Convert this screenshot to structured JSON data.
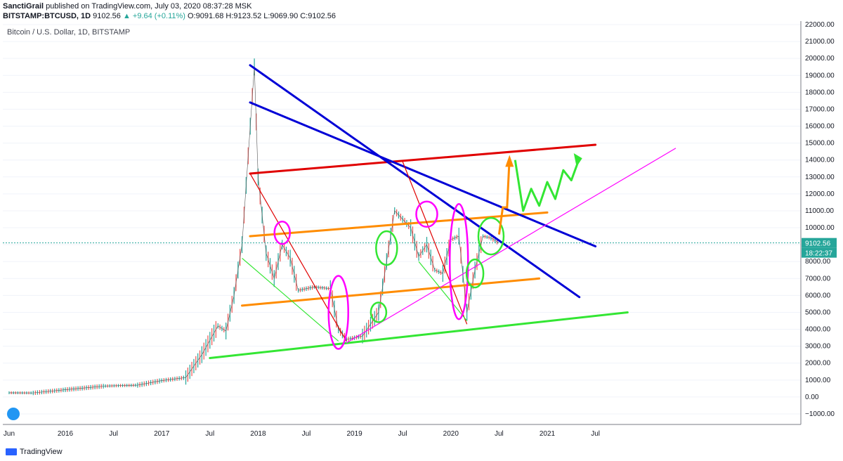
{
  "header": {
    "author": "SanctiGrail",
    "published_text": "published on TradingView.com, July 03, 2020 08:37:28 MSK",
    "symbol": "BITSTAMP:BTCUSD, 1D",
    "last": "9102.56",
    "change": "+9.64 (+0.11%)",
    "ohlc": "O:9091.68 H:9123.52 L:9069.90 C:9102.56",
    "arrow": "▲"
  },
  "symbol_title": "Bitcoin / U.S. Dollar, 1D, BITSTAMP",
  "price_badge": "9102.56",
  "time_badge": "18:22:37",
  "footer_brand": "TradingView",
  "colors": {
    "up": "#26a69a",
    "down": "#ef5350",
    "badge": "#26a69a",
    "blue_trend": "#0000d6",
    "red_trend": "#e00000",
    "orange_channel": "#ff8c00",
    "green_support": "#33e633",
    "magenta": "#ff00ff"
  },
  "chart_data": {
    "type": "line",
    "x_tick_labels": [
      "Jun",
      "2016",
      "Jul",
      "2017",
      "Jul",
      "2018",
      "Jul",
      "2019",
      "Jul",
      "2020",
      "Jul",
      "2021",
      "Jul"
    ],
    "y_tick_labels": [
      "22000.00",
      "21000.00",
      "20000.00",
      "19000.00",
      "18000.00",
      "17000.00",
      "16000.00",
      "15000.00",
      "14000.00",
      "13000.00",
      "12000.00",
      "11000.00",
      "10000.00",
      "9000.00",
      "8000.00",
      "7000.00",
      "6000.00",
      "5000.00",
      "4000.00",
      "3000.00",
      "2000.00",
      "1000.00",
      "0.00",
      "−1000.00"
    ],
    "ylim": [
      -1500,
      22000
    ],
    "x_range": [
      "2015-06",
      "2022-06"
    ],
    "last_price": 9102.56,
    "series": [
      {
        "x": [
          "2015-06",
          "2015-09",
          "2016-01",
          "2016-06",
          "2016-10",
          "2017-01",
          "2017-04",
          "2017-06",
          "2017-08",
          "2017-09",
          "2017-10",
          "2017-11",
          "2017-12-17",
          "2018-01",
          "2018-02",
          "2018-03",
          "2018-04",
          "2018-05",
          "2018-06",
          "2018-08",
          "2018-10",
          "2018-11",
          "2018-12",
          "2019-02",
          "2019-04",
          "2019-05",
          "2019-06",
          "2019-07",
          "2019-08",
          "2019-09",
          "2019-10",
          "2019-11",
          "2019-12",
          "2020-01",
          "2020-02",
          "2020-03",
          "2020-04",
          "2020-05",
          "2020-06",
          "2020-07"
        ],
        "values": [
          250,
          240,
          430,
          650,
          700,
          970,
          1150,
          2500,
          4200,
          3900,
          6000,
          9000,
          19500,
          13000,
          8500,
          7000,
          9000,
          8200,
          6300,
          6500,
          6400,
          4000,
          3400,
          3600,
          5000,
          8000,
          11000,
          10500,
          10000,
          8300,
          9000,
          7500,
          7300,
          9300,
          9500,
          5000,
          7500,
          9500,
          9400,
          9100
        ]
      }
    ],
    "annotations": {
      "red_lines": [
        [
          "2017-12",
          "13200",
          "2021-07",
          "14900"
        ]
      ],
      "blue_lines": [
        [
          "2017-12",
          "19600",
          "2021-05",
          "5900"
        ],
        [
          "2017-12",
          "17400",
          "2021-07",
          "8900"
        ]
      ],
      "orange_lines": [
        [
          "2017-12",
          "9500",
          "2021-01",
          "10900"
        ],
        [
          "2017-11",
          "5400",
          "2020-12",
          "7000"
        ]
      ],
      "green_lines": [
        [
          "2017-07",
          "2300",
          "2021-11",
          "5000"
        ]
      ]
    }
  }
}
